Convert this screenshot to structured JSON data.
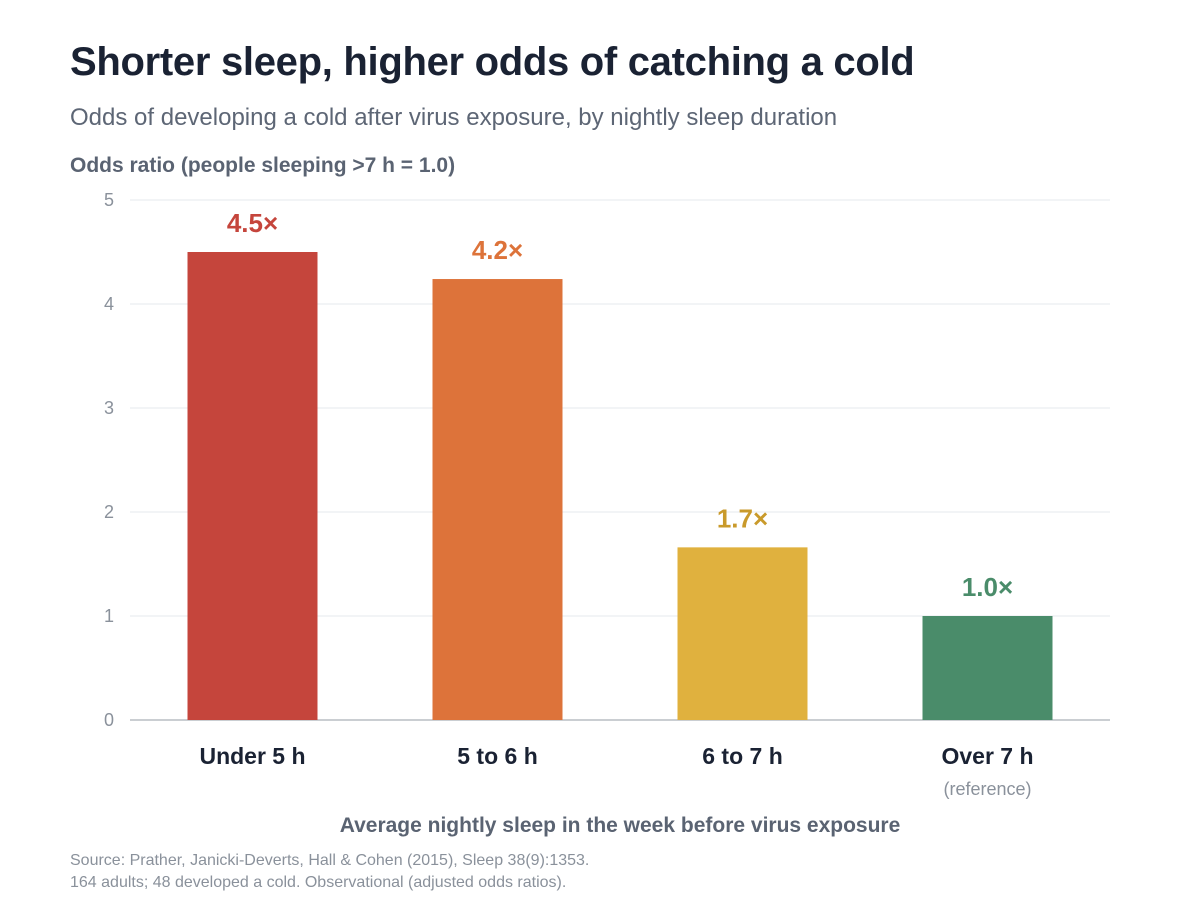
{
  "chart_data": {
    "type": "bar",
    "title": "Shorter sleep, higher odds of catching a cold",
    "subtitle": "Odds of developing a cold after virus exposure, by nightly sleep duration",
    "ylabel": "Odds ratio (people sleeping >7 h = 1.0)",
    "xlabel": "Average nightly sleep in the week before virus exposure",
    "ylim": [
      0,
      5
    ],
    "yticks": [
      "0",
      "1",
      "2",
      "3",
      "4",
      "5"
    ],
    "grid": true,
    "categories": [
      "Under 5 h",
      "5 to 6 h",
      "6 to 7 h",
      "Over 7 h"
    ],
    "category_notes": [
      "",
      "",
      "",
      "(reference)"
    ],
    "values": [
      4.5,
      4.24,
      1.66,
      1.0
    ],
    "data_labels": [
      "4.5×",
      "4.2×",
      "1.7×",
      "1.0×"
    ],
    "bar_colors": [
      "#c5453c",
      "#dd733a",
      "#e0b13e",
      "#4a8c6a"
    ],
    "label_colors": [
      "#c5453c",
      "#dd733a",
      "#c99a2b",
      "#4a8c6a"
    ]
  },
  "source": {
    "line1": "Source: Prather, Janicki-Deverts, Hall & Cohen (2015), Sleep 38(9):1353.",
    "line2": "164 adults; 48 developed a cold. Observational (adjusted odds ratios)."
  }
}
